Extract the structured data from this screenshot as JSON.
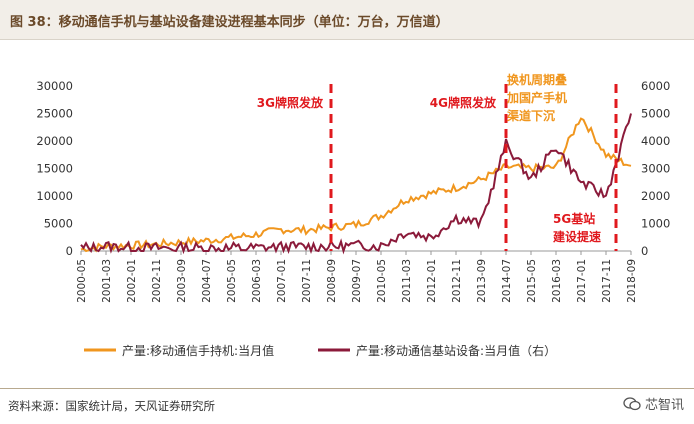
{
  "header": {
    "title": "图 38：移动通信手机与基站设备建设进程基本同步（单位：万台，万信道）"
  },
  "footer": {
    "source": "资料来源：国家统计局，天风证券研究所",
    "watermark": "芯智讯"
  },
  "colors": {
    "phones": "#f0961e",
    "stations": "#8b1a3a",
    "annotation": "#e0191e",
    "annotation_orange": "#f0961e",
    "marker": "#e0191e"
  },
  "chart_data": {
    "type": "line",
    "title": "移动通信手机与基站设备建设进程基本同步（单位：万台，万信道）",
    "x_ticks": [
      "2000-05",
      "2001-03",
      "2002-01",
      "2002-11",
      "2003-09",
      "2004-07",
      "2005-05",
      "2006-03",
      "2007-01",
      "2007-11",
      "2008-09",
      "2009-07",
      "2010-05",
      "2011-03",
      "2012-01",
      "2012-11",
      "2013-09",
      "2014-07",
      "2015-05",
      "2016-03",
      "2017-01",
      "2017-11",
      "2018-09"
    ],
    "y_left": {
      "min": 0,
      "max": 30000,
      "ticks": [
        0,
        5000,
        10000,
        15000,
        20000,
        25000,
        30000
      ]
    },
    "y_right": {
      "min": 0,
      "max": 6000,
      "ticks": [
        0,
        1000,
        2000,
        3000,
        4000,
        5000,
        6000
      ]
    },
    "series": [
      {
        "name": "产量:移动通信手持机:当月值",
        "axis": "left",
        "points": [
          [
            0,
            300
          ],
          [
            1,
            900
          ],
          [
            2,
            1000
          ],
          [
            3,
            1250
          ],
          [
            4,
            1600
          ],
          [
            5,
            1900
          ],
          [
            6,
            2400
          ],
          [
            7,
            3000
          ],
          [
            8,
            3900
          ],
          [
            9,
            3800
          ],
          [
            10,
            4300
          ],
          [
            11,
            4800
          ],
          [
            12,
            6400
          ],
          [
            13,
            9400
          ],
          [
            14,
            10500
          ],
          [
            15,
            11500
          ],
          [
            16,
            13000
          ],
          [
            17,
            15300
          ],
          [
            18,
            15000
          ],
          [
            19,
            15200
          ],
          [
            20,
            24500
          ],
          [
            21,
            17500
          ],
          [
            22,
            15500
          ]
        ]
      },
      {
        "name": "产量:移动通信基站设备:当月值（右）",
        "axis": "right",
        "points": [
          [
            0,
            60
          ],
          [
            1,
            180
          ],
          [
            2,
            120
          ],
          [
            3,
            110
          ],
          [
            4,
            100
          ],
          [
            5,
            90
          ],
          [
            6,
            80
          ],
          [
            7,
            120
          ],
          [
            8,
            150
          ],
          [
            9,
            160
          ],
          [
            10,
            170
          ],
          [
            11,
            200
          ],
          [
            12,
            180
          ],
          [
            13,
            700
          ],
          [
            14,
            500
          ],
          [
            15,
            1200
          ],
          [
            16,
            1000
          ],
          [
            17,
            3900
          ],
          [
            18,
            2600
          ],
          [
            19,
            3800
          ],
          [
            20,
            2500
          ],
          [
            21,
            2000
          ],
          [
            22,
            5000
          ]
        ]
      }
    ],
    "markers": [
      {
        "x_index": 10,
        "label": "3G牌照发放"
      },
      {
        "x_index": 17,
        "label": "4G牌照发放"
      },
      {
        "x_index": 21.4,
        "label": ""
      }
    ],
    "annotations": [
      {
        "text": "换机周期叠加国产手机渠道下沉",
        "lines": [
          "换机周期叠",
          "加国产手机",
          "渠道下沉"
        ]
      },
      {
        "text": "5G基站建设提速",
        "lines": [
          "5G基站",
          "建设提速"
        ]
      }
    ],
    "legend": {
      "position": "bottom"
    }
  }
}
